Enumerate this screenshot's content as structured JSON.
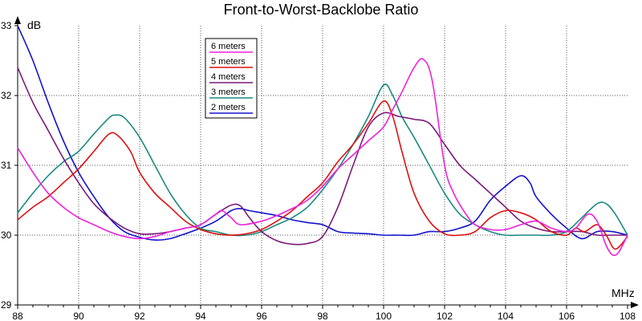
{
  "chart_data": {
    "type": "line",
    "title": "Front-to-Worst-Backlobe Ratio",
    "xlabel": "MHz",
    "ylabel": "dB",
    "xlim": [
      88,
      108
    ],
    "ylim": [
      29,
      33
    ],
    "x_ticks": [
      88,
      90,
      92,
      94,
      96,
      98,
      100,
      102,
      104,
      106,
      108
    ],
    "y_ticks": [
      29,
      30,
      31,
      32,
      33
    ],
    "grid": "on",
    "legend_position": "upper-left-inside",
    "series": [
      {
        "name": "6 meters",
        "color": "#ee22dd",
        "points": [
          [
            88,
            31.25
          ],
          [
            88.5,
            30.9
          ],
          [
            89,
            30.6
          ],
          [
            89.5,
            30.4
          ],
          [
            90,
            30.25
          ],
          [
            90.5,
            30.15
          ],
          [
            91,
            30.05
          ],
          [
            91.5,
            29.98
          ],
          [
            92,
            29.95
          ],
          [
            92.5,
            29.98
          ],
          [
            93,
            30.05
          ],
          [
            93.5,
            30.1
          ],
          [
            94,
            30.15
          ],
          [
            94.5,
            30.3
          ],
          [
            94.7,
            30.35
          ],
          [
            95,
            30.25
          ],
          [
            95.3,
            30.15
          ],
          [
            96,
            30.2
          ],
          [
            96.5,
            30.28
          ],
          [
            97,
            30.38
          ],
          [
            97.5,
            30.5
          ],
          [
            98,
            30.7
          ],
          [
            98.5,
            30.95
          ],
          [
            99,
            31.15
          ],
          [
            99.5,
            31.35
          ],
          [
            100,
            31.55
          ],
          [
            100.3,
            31.8
          ],
          [
            100.6,
            32.05
          ],
          [
            101,
            32.4
          ],
          [
            101.3,
            32.52
          ],
          [
            101.6,
            32.2
          ],
          [
            102,
            31.0
          ],
          [
            102.3,
            30.6
          ],
          [
            102.7,
            30.3
          ],
          [
            103,
            30.15
          ],
          [
            103.5,
            30.08
          ],
          [
            104,
            30.08
          ],
          [
            104.5,
            30.15
          ],
          [
            105,
            30.2
          ],
          [
            105.5,
            30.1
          ],
          [
            106,
            30.05
          ],
          [
            106.3,
            30.1
          ],
          [
            106.7,
            30.3
          ],
          [
            107,
            30.2
          ],
          [
            107.3,
            29.85
          ],
          [
            107.5,
            29.72
          ],
          [
            107.7,
            29.75
          ],
          [
            108,
            30.0
          ]
        ]
      },
      {
        "name": "5 meters",
        "color": "#dd1111",
        "points": [
          [
            88,
            30.22
          ],
          [
            88.5,
            30.4
          ],
          [
            89,
            30.55
          ],
          [
            89.5,
            30.75
          ],
          [
            90,
            30.95
          ],
          [
            90.5,
            31.2
          ],
          [
            91,
            31.45
          ],
          [
            91.3,
            31.42
          ],
          [
            91.7,
            31.2
          ],
          [
            92,
            30.9
          ],
          [
            92.5,
            30.6
          ],
          [
            93,
            30.4
          ],
          [
            93.5,
            30.2
          ],
          [
            94,
            30.08
          ],
          [
            94.5,
            30.02
          ],
          [
            95,
            30.0
          ],
          [
            95.5,
            30.02
          ],
          [
            96,
            30.08
          ],
          [
            96.5,
            30.2
          ],
          [
            97,
            30.35
          ],
          [
            97.5,
            30.55
          ],
          [
            98,
            30.75
          ],
          [
            98.5,
            31.05
          ],
          [
            99,
            31.3
          ],
          [
            99.5,
            31.6
          ],
          [
            100,
            31.92
          ],
          [
            100.3,
            31.7
          ],
          [
            100.6,
            31.2
          ],
          [
            101,
            30.6
          ],
          [
            101.5,
            30.2
          ],
          [
            102,
            30.02
          ],
          [
            102.5,
            30.0
          ],
          [
            103,
            30.05
          ],
          [
            103.5,
            30.25
          ],
          [
            104,
            30.35
          ],
          [
            104.5,
            30.32
          ],
          [
            105,
            30.22
          ],
          [
            105.5,
            30.05
          ],
          [
            106,
            30.0
          ],
          [
            106.3,
            30.1
          ],
          [
            106.6,
            30.05
          ],
          [
            107,
            30.15
          ],
          [
            107.3,
            30.0
          ],
          [
            107.6,
            29.8
          ],
          [
            108,
            29.98
          ]
        ]
      },
      {
        "name": "4 meters",
        "color": "#7a1a7a",
        "points": [
          [
            88,
            32.4
          ],
          [
            88.5,
            31.9
          ],
          [
            89,
            31.5
          ],
          [
            89.5,
            31.1
          ],
          [
            90,
            30.75
          ],
          [
            90.5,
            30.45
          ],
          [
            91,
            30.25
          ],
          [
            91.5,
            30.1
          ],
          [
            92,
            30.02
          ],
          [
            92.5,
            30.02
          ],
          [
            93,
            30.05
          ],
          [
            93.5,
            30.1
          ],
          [
            94,
            30.15
          ],
          [
            94.5,
            30.3
          ],
          [
            95,
            30.43
          ],
          [
            95.3,
            30.42
          ],
          [
            95.6,
            30.25
          ],
          [
            96,
            30.05
          ],
          [
            96.5,
            29.92
          ],
          [
            97,
            29.87
          ],
          [
            97.5,
            29.88
          ],
          [
            98,
            29.98
          ],
          [
            98.5,
            30.4
          ],
          [
            99,
            31.0
          ],
          [
            99.5,
            31.55
          ],
          [
            100,
            31.75
          ],
          [
            100.5,
            31.7
          ],
          [
            101,
            31.66
          ],
          [
            101.5,
            31.6
          ],
          [
            102,
            31.3
          ],
          [
            102.5,
            31.0
          ],
          [
            103,
            30.8
          ],
          [
            103.5,
            30.6
          ],
          [
            104,
            30.4
          ],
          [
            104.5,
            30.2
          ],
          [
            105,
            30.1
          ],
          [
            105.5,
            30.05
          ],
          [
            106,
            30.05
          ],
          [
            106.5,
            30.05
          ],
          [
            107,
            30.0
          ],
          [
            107.5,
            30.0
          ],
          [
            108,
            30.0
          ]
        ]
      },
      {
        "name": "3 meters",
        "color": "#1a8a80",
        "points": [
          [
            88,
            30.32
          ],
          [
            88.5,
            30.6
          ],
          [
            89,
            30.85
          ],
          [
            89.5,
            31.05
          ],
          [
            90,
            31.2
          ],
          [
            90.5,
            31.45
          ],
          [
            91,
            31.68
          ],
          [
            91.2,
            31.72
          ],
          [
            91.5,
            31.68
          ],
          [
            92,
            31.4
          ],
          [
            92.5,
            31.0
          ],
          [
            93,
            30.6
          ],
          [
            93.5,
            30.3
          ],
          [
            94,
            30.1
          ],
          [
            94.5,
            30.05
          ],
          [
            95,
            30.0
          ],
          [
            95.5,
            30.0
          ],
          [
            96,
            30.05
          ],
          [
            96.5,
            30.15
          ],
          [
            97,
            30.25
          ],
          [
            97.5,
            30.4
          ],
          [
            98,
            30.65
          ],
          [
            98.5,
            30.95
          ],
          [
            99,
            31.3
          ],
          [
            99.5,
            31.7
          ],
          [
            100,
            32.15
          ],
          [
            100.3,
            32.0
          ],
          [
            100.6,
            31.7
          ],
          [
            101,
            31.4
          ],
          [
            101.5,
            31.0
          ],
          [
            102,
            30.6
          ],
          [
            102.5,
            30.3
          ],
          [
            103,
            30.15
          ],
          [
            103.5,
            30.05
          ],
          [
            104,
            30.0
          ],
          [
            104.5,
            30.0
          ],
          [
            105,
            30.0
          ],
          [
            105.5,
            30.0
          ],
          [
            106,
            30.05
          ],
          [
            106.5,
            30.25
          ],
          [
            107,
            30.45
          ],
          [
            107.3,
            30.45
          ],
          [
            107.6,
            30.3
          ],
          [
            108,
            30.0
          ]
        ]
      },
      {
        "name": "2 meters",
        "color": "#1414cc",
        "points": [
          [
            88,
            33.0
          ],
          [
            88.5,
            32.5
          ],
          [
            89,
            31.9
          ],
          [
            89.5,
            31.35
          ],
          [
            90,
            30.9
          ],
          [
            90.5,
            30.55
          ],
          [
            91,
            30.25
          ],
          [
            91.5,
            30.05
          ],
          [
            92,
            29.97
          ],
          [
            92.5,
            29.93
          ],
          [
            93,
            29.95
          ],
          [
            93.5,
            30.02
          ],
          [
            94,
            30.1
          ],
          [
            94.5,
            30.2
          ],
          [
            95,
            30.35
          ],
          [
            95.3,
            30.38
          ],
          [
            95.6,
            30.35
          ],
          [
            96,
            30.32
          ],
          [
            96.5,
            30.28
          ],
          [
            97,
            30.22
          ],
          [
            97.5,
            30.18
          ],
          [
            98,
            30.15
          ],
          [
            98.5,
            30.05
          ],
          [
            99,
            30.03
          ],
          [
            99.5,
            30.02
          ],
          [
            100,
            30.0
          ],
          [
            100.5,
            30.0
          ],
          [
            101,
            30.0
          ],
          [
            101.5,
            30.05
          ],
          [
            102,
            30.05
          ],
          [
            102.5,
            30.1
          ],
          [
            103,
            30.2
          ],
          [
            103.5,
            30.5
          ],
          [
            104,
            30.7
          ],
          [
            104.5,
            30.85
          ],
          [
            104.8,
            30.75
          ],
          [
            105,
            30.55
          ],
          [
            105.5,
            30.3
          ],
          [
            106,
            30.1
          ],
          [
            106.5,
            29.95
          ],
          [
            107,
            30.05
          ],
          [
            107.5,
            30.05
          ],
          [
            108,
            30.0
          ]
        ]
      }
    ]
  }
}
